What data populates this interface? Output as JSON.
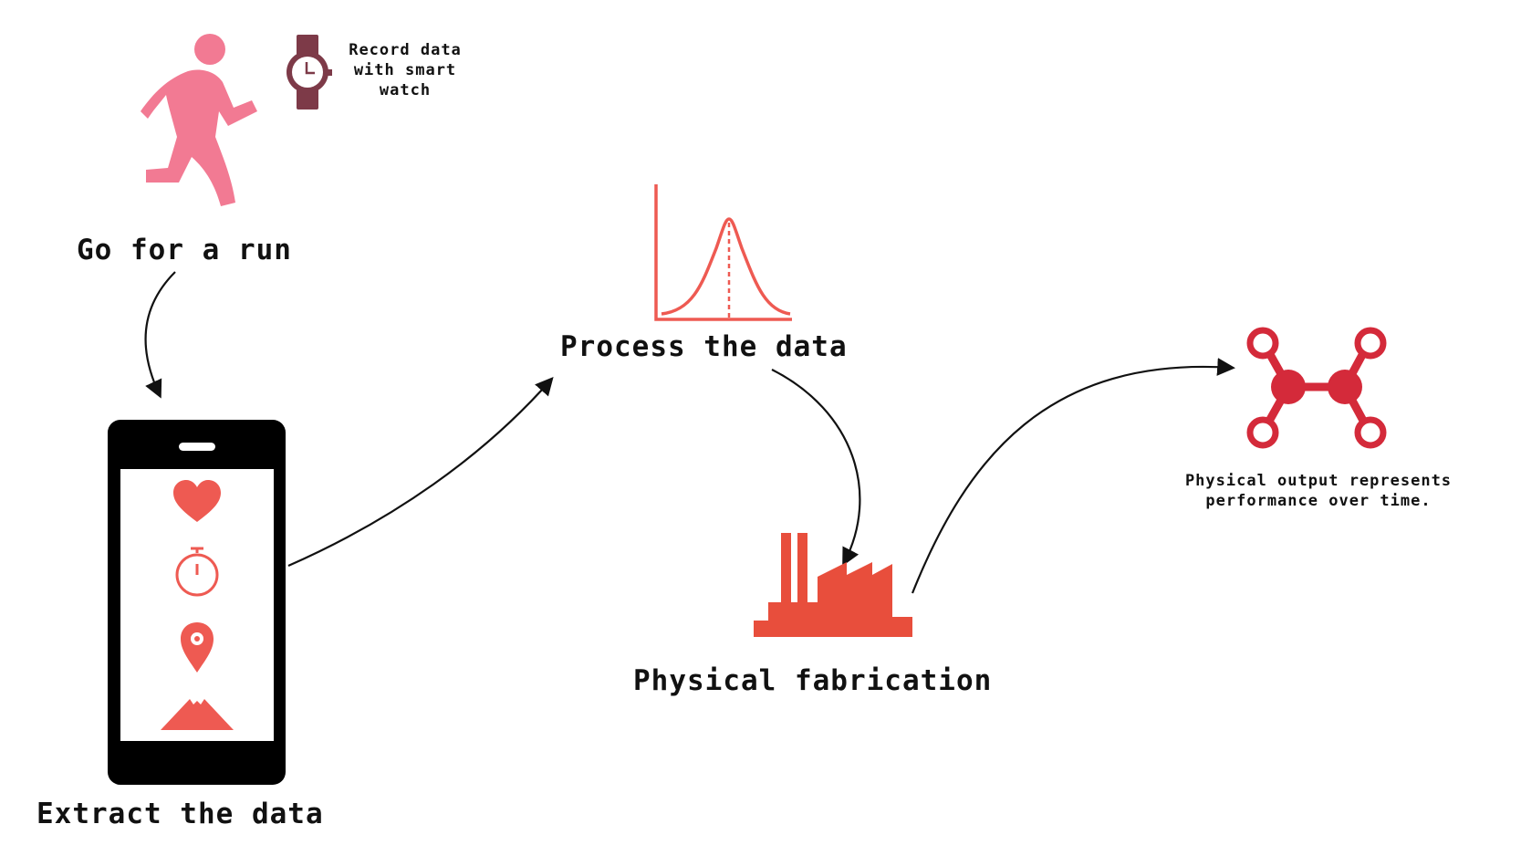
{
  "steps": {
    "run": {
      "label": "Go for a run",
      "icon": "runner-icon"
    },
    "watch": {
      "label": "Record data with smart watch",
      "icon": "smartwatch-icon"
    },
    "extract": {
      "label": "Extract the data",
      "icon": "smartphone-icon"
    },
    "process": {
      "label": "Process the data",
      "icon": "bell-curve-icon"
    },
    "fabrication": {
      "label": "Physical fabrication",
      "icon": "factory-icon"
    },
    "output": {
      "label": "Physical output represents performance over time.",
      "icon": "molecule-icon"
    }
  },
  "phone_screen_icons": [
    "heart-icon",
    "stopwatch-icon",
    "location-pin-icon",
    "mountain-icon"
  ],
  "colors": {
    "runner": "#f27a93",
    "watch": "#7d3a48",
    "accent_red": "#ee5a52",
    "factory": "#e84e3c",
    "molecule": "#d42a3a",
    "text": "#111111",
    "phone": "#000000"
  }
}
